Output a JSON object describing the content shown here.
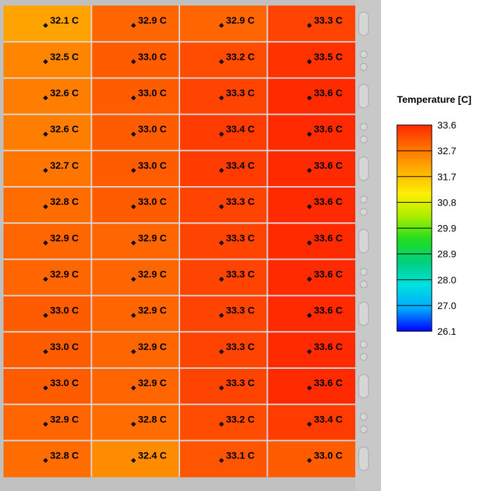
{
  "chart_data": {
    "type": "heatmap",
    "unit": "C",
    "rows": 13,
    "cols": 4,
    "values": [
      [
        32.1,
        32.9,
        32.9,
        33.3
      ],
      [
        32.5,
        33.0,
        33.2,
        33.5
      ],
      [
        32.6,
        33.0,
        33.3,
        33.6
      ],
      [
        32.6,
        33.0,
        33.4,
        33.6
      ],
      [
        32.7,
        33.0,
        33.4,
        33.6
      ],
      [
        32.8,
        33.0,
        33.3,
        33.6
      ],
      [
        32.9,
        32.9,
        33.3,
        33.6
      ],
      [
        32.9,
        32.9,
        33.3,
        33.6
      ],
      [
        33.0,
        32.9,
        33.3,
        33.6
      ],
      [
        33.0,
        32.9,
        33.3,
        33.6
      ],
      [
        33.0,
        32.9,
        33.3,
        33.6
      ],
      [
        32.9,
        32.8,
        33.2,
        33.4
      ],
      [
        32.8,
        32.4,
        33.1,
        33.0
      ]
    ],
    "labels": [
      [
        "32.1 C",
        "32.9 C",
        "32.9 C",
        "33.3 C"
      ],
      [
        "32.5 C",
        "33.0 C",
        "33.2 C",
        "33.5 C"
      ],
      [
        "32.6 C",
        "33.0 C",
        "33.3 C",
        "33.6 C"
      ],
      [
        "32.6 C",
        "33.0 C",
        "33.4 C",
        "33.6 C"
      ],
      [
        "32.7 C",
        "33.0 C",
        "33.4 C",
        "33.6 C"
      ],
      [
        "32.8 C",
        "33.0 C",
        "33.3 C",
        "33.6 C"
      ],
      [
        "32.9 C",
        "32.9 C",
        "33.3 C",
        "33.6 C"
      ],
      [
        "32.9 C",
        "32.9 C",
        "33.3 C",
        "33.6 C"
      ],
      [
        "33.0 C",
        "32.9 C",
        "33.3 C",
        "33.6 C"
      ],
      [
        "33.0 C",
        "32.9 C",
        "33.3 C",
        "33.6 C"
      ],
      [
        "33.0 C",
        "32.9 C",
        "33.3 C",
        "33.6 C"
      ],
      [
        "32.9 C",
        "32.8 C",
        "33.2 C",
        "33.4 C"
      ],
      [
        "32.8 C",
        "32.4 C",
        "33.1 C",
        "33.0 C"
      ]
    ],
    "legend": {
      "title": "Temperature [C]",
      "ticks": [
        "33.6",
        "32.7",
        "31.7",
        "30.8",
        "29.9",
        "28.9",
        "28.0",
        "27.0",
        "26.1"
      ],
      "min": 26.1,
      "max": 33.6
    },
    "colors": {
      "ramp": [
        "#0000ff",
        "#00aaff",
        "#00e0e0",
        "#00d080",
        "#20dd20",
        "#aaee00",
        "#ffee00",
        "#ffb000",
        "#ff7000",
        "#ff2a00"
      ],
      "grid": "#d9d9d9",
      "frame": "#c0c0c0"
    }
  }
}
